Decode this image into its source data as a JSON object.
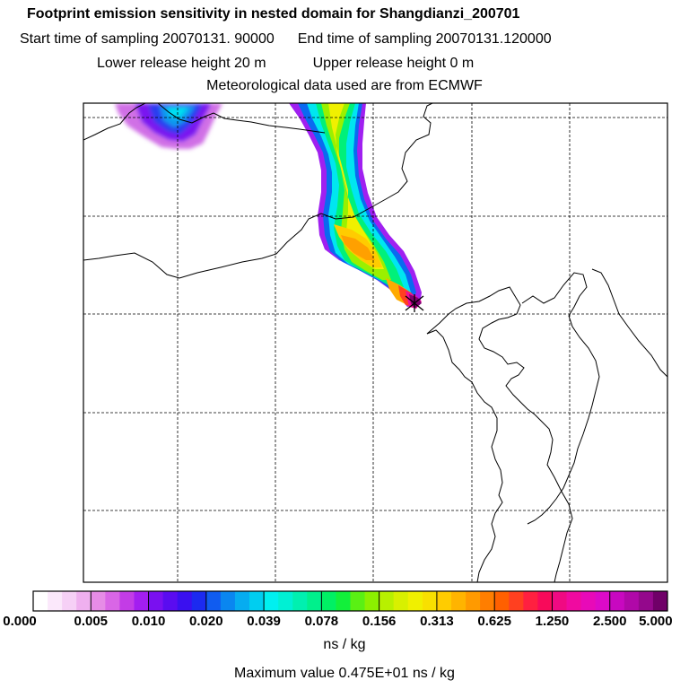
{
  "title": {
    "line1": "Footprint emission sensitivity in nested domain for Shangdianzi_200701",
    "start": "Start time of sampling 20070131. 90000",
    "end": "End time of sampling 20070131.120000",
    "lower": "Lower release height   20 m",
    "upper": "Upper release height    0 m",
    "met": "Meteorological data used are from ECMWF"
  },
  "colorbar": {
    "labels": [
      "0.000",
      "0.005",
      "0.010",
      "0.020",
      "0.039",
      "0.078",
      "0.156",
      "0.313",
      "0.625",
      "1.250",
      "2.500",
      "5.000"
    ],
    "colors": [
      "#ffffff",
      "#fbe8fb",
      "#f6d0f6",
      "#efb0ef",
      "#e68ce6",
      "#d966e6",
      "#c33ce6",
      "#a31ef0",
      "#7a10f0",
      "#5a0cf0",
      "#3a10f0",
      "#1c2af0",
      "#105cf0",
      "#0a86f0",
      "#06acf0",
      "#00cef0",
      "#00f0f0",
      "#00f0d4",
      "#00f0b0",
      "#00f08c",
      "#00f064",
      "#12f03a",
      "#5af014",
      "#8cf000",
      "#b8f000",
      "#d8f000",
      "#f0f000",
      "#f8e000",
      "#ffcc00",
      "#ffb400",
      "#ff9a00",
      "#ff7e00",
      "#ff6000",
      "#ff4020",
      "#ff2040",
      "#f80a5a",
      "#f00a82",
      "#f00aa0",
      "#e80ab8",
      "#dc0ac8",
      "#c808c0",
      "#b008a8",
      "#94088c",
      "#700068"
    ],
    "units": "ns / kg",
    "max_value": "Maximum value  0.475E+01 ns / kg"
  },
  "map": {
    "receptor": "Shangdianzi"
  }
}
